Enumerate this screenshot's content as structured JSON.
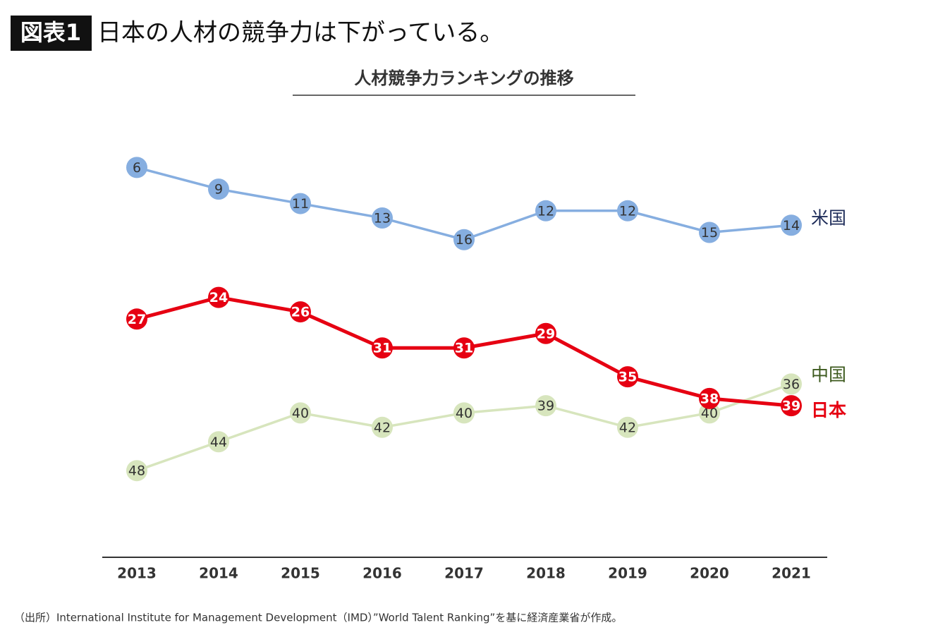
{
  "header": {
    "badge": "図表1",
    "headline": "日本の人材の競争力は下がっている。"
  },
  "chart_data": {
    "type": "line",
    "title": "人材競争力ランキングの推移",
    "categories": [
      "2013",
      "2014",
      "2015",
      "2016",
      "2017",
      "2018",
      "2019",
      "2020",
      "2021"
    ],
    "ylim": [
      60,
      0
    ],
    "series": [
      {
        "name": "米国",
        "color": "#86aee0",
        "label_color": "#1f2d5a",
        "values": [
          6,
          9,
          11,
          13,
          16,
          12,
          12,
          15,
          14
        ]
      },
      {
        "name": "中国",
        "color": "#d7e5bd",
        "label_color": "#3d5a1e",
        "values": [
          48,
          44,
          40,
          42,
          40,
          39,
          42,
          40,
          36
        ]
      },
      {
        "name": "日本",
        "color": "#e60012",
        "label_color": "#e60012",
        "values": [
          27,
          24,
          26,
          31,
          31,
          29,
          35,
          38,
          39
        ]
      }
    ]
  },
  "source": "（出所）International Institute for Management Development（IMD）”World Talent Ranking”を基に経済産業省が作成。"
}
